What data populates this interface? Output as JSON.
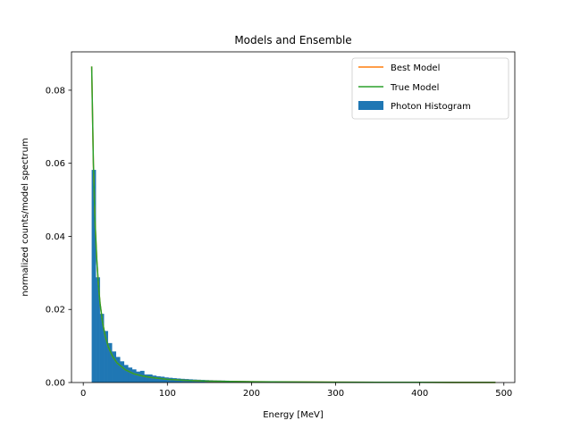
{
  "chart_data": {
    "type": "line",
    "title": "Models and Ensemble",
    "xlabel": "Energy [MeV]",
    "ylabel": "normalized counts/model spectrum",
    "xlim": [
      -14,
      513
    ],
    "ylim": [
      0,
      0.0905
    ],
    "xticks": [
      0,
      100,
      200,
      300,
      400,
      500
    ],
    "xtick_labels": [
      "0",
      "100",
      "200",
      "300",
      "400",
      "500"
    ],
    "yticks": [
      0,
      0.02,
      0.04,
      0.06,
      0.08
    ],
    "ytick_labels": [
      "0.00",
      "0.02",
      "0.04",
      "0.06",
      "0.08"
    ],
    "grid": false,
    "legend_position": "top-right",
    "series": [
      {
        "name": "Best Model",
        "kind": "line",
        "color": "#ff7f0e",
        "x": [
          10,
          12,
          14,
          16,
          18,
          20,
          23,
          26,
          30,
          35,
          40,
          50,
          60,
          70,
          80,
          100,
          120,
          150,
          200,
          250,
          300,
          350,
          400,
          450,
          490
        ],
        "y": [
          0.0865,
          0.0601,
          0.0441,
          0.0338,
          0.0267,
          0.0216,
          0.0164,
          0.0128,
          0.0096,
          0.0071,
          0.0054,
          0.0035,
          0.0024,
          0.0018,
          0.0014,
          0.00087,
          0.0006,
          0.00038,
          0.00022,
          0.00014,
          9.6e-05,
          7.1e-05,
          5.4e-05,
          4.3e-05,
          3.6e-05
        ]
      },
      {
        "name": "True Model",
        "kind": "line",
        "color": "#2ca02c",
        "x": [
          10,
          12,
          14,
          16,
          18,
          20,
          23,
          26,
          30,
          35,
          40,
          50,
          60,
          70,
          80,
          100,
          120,
          150,
          200,
          250,
          300,
          350,
          400,
          450,
          490
        ],
        "y": [
          0.0865,
          0.0601,
          0.0441,
          0.0338,
          0.0267,
          0.0216,
          0.0164,
          0.0128,
          0.0096,
          0.0071,
          0.0054,
          0.0035,
          0.0024,
          0.0018,
          0.0014,
          0.00087,
          0.0006,
          0.00038,
          0.00022,
          0.00014,
          9.6e-05,
          7.1e-05,
          5.4e-05,
          4.3e-05,
          3.6e-05
        ]
      },
      {
        "name": "Photon Histogram",
        "kind": "histogram",
        "color": "#1f77b4",
        "bin_width": 4.8,
        "x": [
          10,
          14.8,
          19.6,
          24.4,
          29.2,
          34,
          38.8,
          43.6,
          48.4,
          53.2,
          58,
          62.8,
          67.6,
          72.4,
          77.2,
          82,
          86.8,
          91.6,
          96.4,
          101.2,
          106,
          110.8,
          115.6,
          120.4,
          125.2,
          130,
          134.8,
          139.6,
          144.4,
          149.2,
          154,
          158.8,
          163.6,
          168.4,
          173.2,
          178,
          182.8,
          187.6,
          192.4,
          197.2,
          202,
          206.8,
          211.6,
          216.4,
          221.2,
          226,
          230.8,
          235.6,
          240.4,
          245.2,
          250,
          254.8,
          259.6,
          264.4,
          269.2,
          274,
          278.8,
          283.6,
          288.4,
          293.2,
          298,
          302.8,
          307.6,
          312.4,
          317.2,
          322,
          326.8,
          331.6,
          336.4,
          341.2,
          346,
          350.8,
          355.6,
          360.4,
          365.2,
          370,
          374.8,
          379.6,
          384.4,
          389.2,
          394,
          398.8,
          403.6,
          408.4,
          413.2,
          418,
          422.8,
          427.6,
          432.4,
          437.2,
          442,
          446.8,
          451.6,
          456.4,
          461.2,
          466,
          470.8,
          475.6,
          480.4,
          485.2
        ],
        "y": [
          0.0582,
          0.0288,
          0.0188,
          0.0141,
          0.0108,
          0.0085,
          0.007,
          0.0058,
          0.0048,
          0.0041,
          0.0036,
          0.003,
          0.0032,
          0.0022,
          0.0022,
          0.0019,
          0.0017,
          0.0016,
          0.0014,
          0.0013,
          0.0012,
          0.0011,
          0.00102,
          0.00096,
          0.00088,
          0.00082,
          0.00077,
          0.00072,
          0.00068,
          0.00064,
          0.0006,
          0.00057,
          0.00054,
          0.00051,
          0.00048,
          0.00046,
          0.00044,
          0.00042,
          0.0004,
          0.00038,
          0.00036,
          0.00035,
          0.00033,
          0.00032,
          0.00031,
          0.0003,
          0.00028,
          0.00027,
          0.00026,
          0.00025,
          0.00024,
          0.00023,
          0.00022,
          0.00022,
          0.00021,
          0.0002,
          0.00019,
          0.00019,
          0.00018,
          0.00017,
          0.00017,
          0.00016,
          0.00016,
          0.00015,
          0.00015,
          0.00014,
          0.00014,
          0.00013,
          0.00013,
          0.00012,
          0.00012,
          0.00012,
          0.00011,
          0.00011,
          0.00011,
          0.0001,
          0.0001,
          0.0001,
          9.5e-05,
          9.2e-05,
          9e-05,
          8.7e-05,
          8.5e-05,
          8.2e-05,
          8e-05,
          7.8e-05,
          7.6e-05,
          7.4e-05,
          7.2e-05,
          7e-05,
          6.8e-05,
          6.6e-05,
          6.5e-05,
          6.3e-05,
          6.2e-05,
          6e-05,
          5.9e-05,
          5.7e-05,
          5.6e-05,
          5.5e-05
        ]
      }
    ]
  }
}
